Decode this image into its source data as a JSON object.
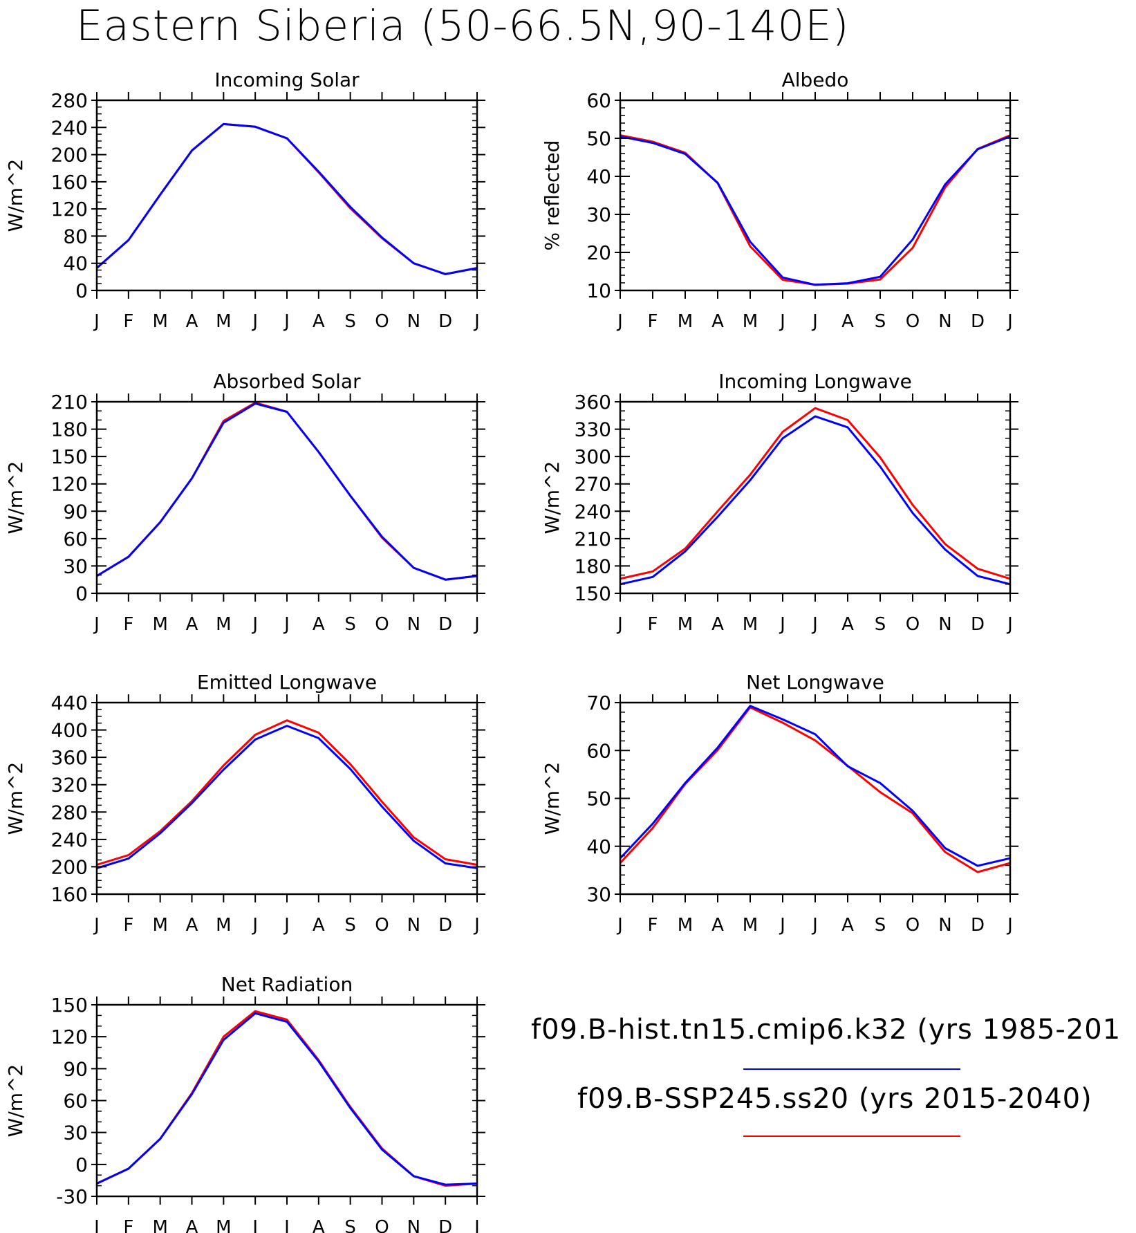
{
  "title": "Eastern Siberia (50-66.5N,90-140E)",
  "months": [
    "J",
    "F",
    "M",
    "A",
    "M",
    "J",
    "J",
    "A",
    "S",
    "O",
    "N",
    "D",
    "J"
  ],
  "legend": [
    {
      "label": "f09.B-hist.tn15.cmip6.k32 (yrs 1985-201",
      "color": "#0000ff"
    },
    {
      "label": "f09.B-SSP245.ss20 (yrs 2015-2040)",
      "color": "#ff0000"
    }
  ],
  "chart_data": [
    {
      "type": "line",
      "title": "Incoming Solar",
      "ylabel": "W/m^2",
      "ylim": [
        0,
        280
      ],
      "yticks": [
        0,
        40,
        80,
        120,
        160,
        200,
        240,
        280
      ],
      "yminor": 10,
      "categories": [
        "J",
        "F",
        "M",
        "A",
        "M",
        "J",
        "J",
        "A",
        "S",
        "O",
        "N",
        "D",
        "J"
      ],
      "series": [
        {
          "color": "#ff0000",
          "values": [
            33,
            74,
            141,
            206,
            245,
            241,
            224,
            174,
            121,
            77,
            40,
            24,
            33
          ]
        },
        {
          "color": "#0000ff",
          "values": [
            33,
            74,
            141,
            206,
            245,
            241,
            224,
            175,
            123,
            78,
            40,
            24,
            33
          ]
        }
      ]
    },
    {
      "type": "line",
      "title": "Albedo",
      "ylabel": "% reflected",
      "ylim": [
        10,
        60
      ],
      "yticks": [
        10,
        20,
        30,
        40,
        50,
        60
      ],
      "yminor": 2,
      "categories": [
        "J",
        "F",
        "M",
        "A",
        "M",
        "J",
        "J",
        "A",
        "S",
        "O",
        "N",
        "D",
        "J"
      ],
      "series": [
        {
          "color": "#ff0000",
          "values": [
            50.8,
            49.1,
            46.2,
            38.2,
            21.6,
            12.8,
            11.5,
            11.8,
            12.9,
            21.2,
            37.1,
            47.2,
            50.8
          ]
        },
        {
          "color": "#0000ff",
          "values": [
            50.5,
            48.8,
            45.9,
            38.3,
            22.8,
            13.4,
            11.5,
            11.9,
            13.6,
            23.4,
            37.9,
            47.1,
            50.5
          ]
        }
      ]
    },
    {
      "type": "line",
      "title": "Absorbed Solar",
      "ylabel": "W/m^2",
      "ylim": [
        0,
        210
      ],
      "yticks": [
        0,
        30,
        60,
        90,
        120,
        150,
        180,
        210
      ],
      "yminor": 10,
      "categories": [
        "J",
        "F",
        "M",
        "A",
        "M",
        "J",
        "J",
        "A",
        "S",
        "O",
        "N",
        "D",
        "J"
      ],
      "series": [
        {
          "color": "#ff0000",
          "values": [
            19,
            40,
            78,
            126,
            189,
            209,
            199,
            155,
            107,
            61,
            28,
            15,
            19
          ]
        },
        {
          "color": "#0000ff",
          "values": [
            19,
            40,
            78,
            126,
            187,
            208,
            199,
            155,
            107,
            62,
            28,
            15,
            19
          ]
        }
      ]
    },
    {
      "type": "line",
      "title": "Incoming Longwave",
      "ylabel": "W/m^2",
      "ylim": [
        150,
        360
      ],
      "yticks": [
        150,
        180,
        210,
        240,
        270,
        300,
        330,
        360
      ],
      "yminor": 10,
      "categories": [
        "J",
        "F",
        "M",
        "A",
        "M",
        "J",
        "J",
        "A",
        "S",
        "O",
        "N",
        "D",
        "J"
      ],
      "series": [
        {
          "color": "#ff0000",
          "values": [
            166,
            174,
            199,
            240,
            280,
            327,
            353,
            340,
            299,
            247,
            204,
            177,
            166
          ]
        },
        {
          "color": "#0000ff",
          "values": [
            160,
            168,
            196,
            234,
            274,
            320,
            344,
            332,
            289,
            238,
            198,
            169,
            160
          ]
        }
      ]
    },
    {
      "type": "line",
      "title": "Emitted Longwave",
      "ylabel": "W/m^2",
      "ylim": [
        160,
        440
      ],
      "yticks": [
        160,
        200,
        240,
        280,
        320,
        360,
        400,
        440
      ],
      "yminor": 10,
      "categories": [
        "J",
        "F",
        "M",
        "A",
        "M",
        "J",
        "J",
        "A",
        "S",
        "O",
        "N",
        "D",
        "J"
      ],
      "series": [
        {
          "color": "#ff0000",
          "values": [
            203,
            217,
            252,
            296,
            348,
            393,
            414,
            396,
            350,
            295,
            243,
            211,
            203
          ]
        },
        {
          "color": "#0000ff",
          "values": [
            198,
            212,
            249,
            293,
            342,
            386,
            406,
            388,
            343,
            288,
            238,
            205,
            198
          ]
        }
      ]
    },
    {
      "type": "line",
      "title": "Net Longwave",
      "ylabel": "W/m^2",
      "ylim": [
        30,
        70
      ],
      "yticks": [
        30,
        40,
        50,
        60,
        70
      ],
      "yminor": 2,
      "categories": [
        "J",
        "F",
        "M",
        "A",
        "M",
        "J",
        "J",
        "A",
        "S",
        "O",
        "N",
        "D",
        "J"
      ],
      "series": [
        {
          "color": "#ff0000",
          "values": [
            36.5,
            43.8,
            53.0,
            60.1,
            69.0,
            65.8,
            62.1,
            56.8,
            51.3,
            46.9,
            38.8,
            34.6,
            36.5
          ]
        },
        {
          "color": "#0000ff",
          "values": [
            37.5,
            44.7,
            53.2,
            60.6,
            69.3,
            66.5,
            63.4,
            56.7,
            53.2,
            47.4,
            39.6,
            35.9,
            37.5
          ]
        }
      ]
    },
    {
      "type": "line",
      "title": "Net Radiation",
      "ylabel": "W/m^2",
      "ylim": [
        -30,
        150
      ],
      "yticks": [
        -30,
        0,
        30,
        60,
        90,
        120,
        150
      ],
      "yminor": 10,
      "categories": [
        "J",
        "F",
        "M",
        "A",
        "M",
        "J",
        "J",
        "A",
        "S",
        "O",
        "N",
        "D",
        "J"
      ],
      "series": [
        {
          "color": "#ff0000",
          "values": [
            -18,
            -4,
            24,
            67,
            120,
            144,
            136,
            98,
            54,
            15,
            -11,
            -20,
            -18
          ]
        },
        {
          "color": "#0000ff",
          "values": [
            -18,
            -4,
            24,
            66,
            117,
            142,
            134,
            97,
            53,
            14,
            -11,
            -19,
            -18
          ]
        }
      ]
    }
  ]
}
